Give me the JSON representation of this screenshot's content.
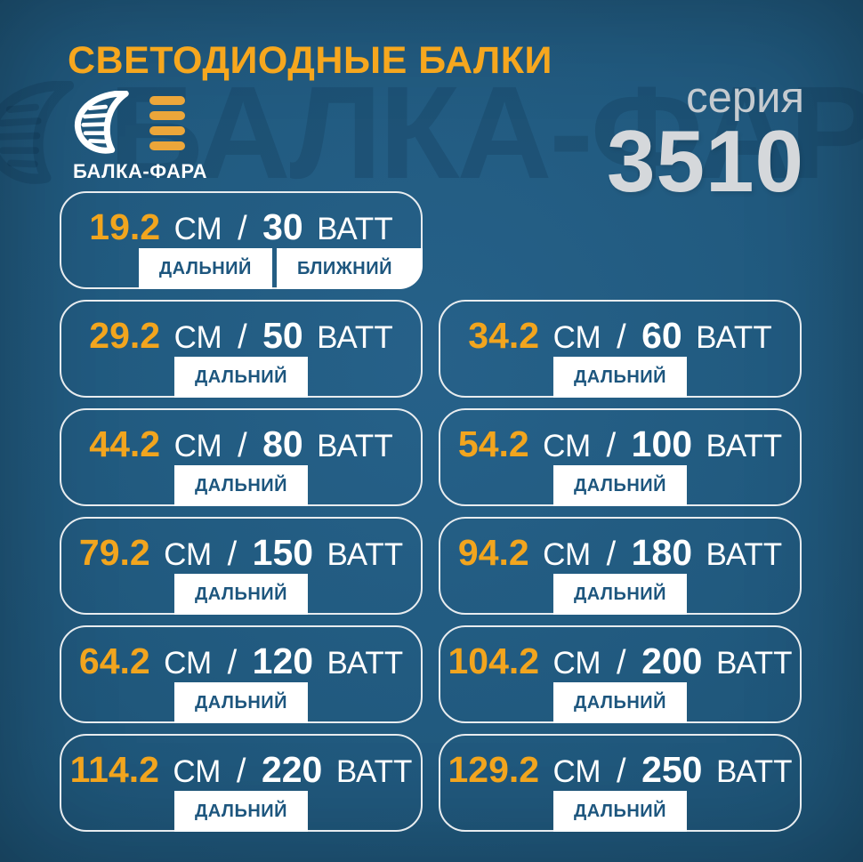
{
  "page": {
    "title": "СВЕТОДИОДНЫЕ БАЛКИ",
    "watermark_text": "БАЛКА-ФАРА"
  },
  "brand": {
    "name": "БАЛКА-ФАРА",
    "logo_icon": "headlight-lens-icon",
    "beams_icon": "beam-bars-icon"
  },
  "series": {
    "label": "серия",
    "number": "3510"
  },
  "units": {
    "length": "СМ",
    "separator": "/",
    "power": "ВАТТ"
  },
  "products": [
    {
      "length_cm": "19.2",
      "watts": "30",
      "modes": [
        "ДАЛЬНИЙ",
        "БЛИЖНИЙ"
      ]
    },
    {
      "length_cm": "29.2",
      "watts": "50",
      "modes": [
        "ДАЛЬНИЙ"
      ]
    },
    {
      "length_cm": "34.2",
      "watts": "60",
      "modes": [
        "ДАЛЬНИЙ"
      ]
    },
    {
      "length_cm": "44.2",
      "watts": "80",
      "modes": [
        "ДАЛЬНИЙ"
      ]
    },
    {
      "length_cm": "54.2",
      "watts": "100",
      "modes": [
        "ДАЛЬНИЙ"
      ]
    },
    {
      "length_cm": "79.2",
      "watts": "150",
      "modes": [
        "ДАЛЬНИЙ"
      ]
    },
    {
      "length_cm": "94.2",
      "watts": "180",
      "modes": [
        "ДАЛЬНИЙ"
      ]
    },
    {
      "length_cm": "64.2",
      "watts": "120",
      "modes": [
        "ДАЛЬНИЙ"
      ]
    },
    {
      "length_cm": "104.2",
      "watts": "200",
      "modes": [
        "ДАЛЬНИЙ"
      ]
    },
    {
      "length_cm": "114.2",
      "watts": "220",
      "modes": [
        "ДАЛЬНИЙ"
      ]
    },
    {
      "length_cm": "129.2",
      "watts": "250",
      "modes": [
        "ДАЛЬНИЙ"
      ]
    }
  ],
  "colors": {
    "background": "#236087",
    "accent_orange": "#F2A51E",
    "title_orange": "#F6A71E",
    "card_border": "#E8ECEF",
    "tab_text": "#1D567E",
    "series_label": "#C5CBD0",
    "series_number": "#D5D8DB"
  }
}
